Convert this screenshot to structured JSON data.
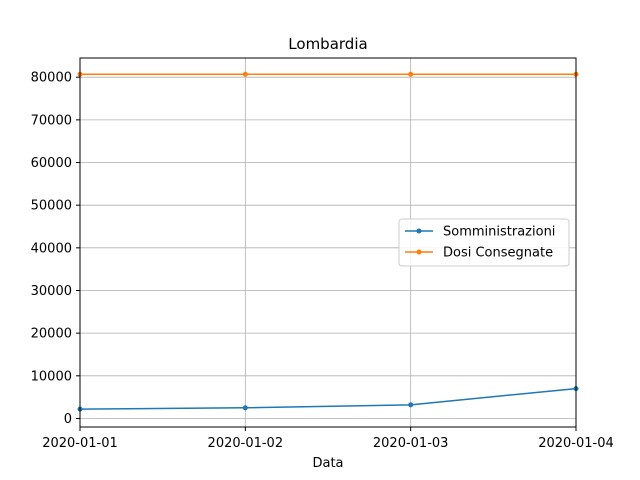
{
  "chart_data": {
    "type": "line",
    "title": "Lombardia",
    "xlabel": "Data",
    "ylabel": "",
    "x": [
      "2020-01-01",
      "2020-01-02",
      "2020-01-03",
      "2020-01-04"
    ],
    "ylim": [
      -2000,
      84500
    ],
    "yticks": [
      0,
      10000,
      20000,
      30000,
      40000,
      50000,
      60000,
      70000,
      80000
    ],
    "grid": true,
    "legend_position": "center-right",
    "series": [
      {
        "name": "Somministrazioni",
        "color": "#1f77b4",
        "values": [
          2200,
          2500,
          3200,
          7000
        ]
      },
      {
        "name": "Dosi Consegnate",
        "color": "#ff7f0e",
        "values": [
          80700,
          80700,
          80700,
          80700
        ]
      }
    ]
  }
}
